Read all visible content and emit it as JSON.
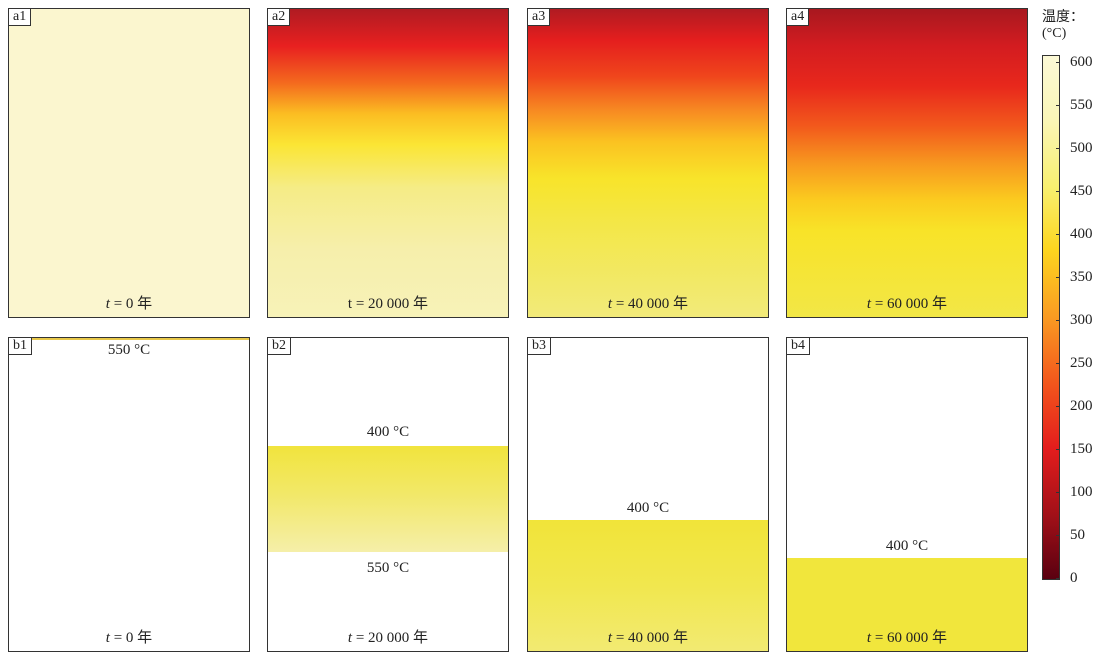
{
  "top_row": [
    {
      "id": "a1",
      "time": "= 0 年",
      "t_italic": "t"
    },
    {
      "id": "a2",
      "time": "t = 20 000 年",
      "t_italic": ""
    },
    {
      "id": "a3",
      "time": "= 40 000 年",
      "t_italic": "t"
    },
    {
      "id": "a4",
      "time": "= 60 000 年",
      "t_italic": "t"
    }
  ],
  "bottom_row": [
    {
      "id": "b1",
      "time": "= 0 年",
      "t_italic": "t",
      "isotherm_top": "550 °C"
    },
    {
      "id": "b2",
      "time": "= 20 000 年",
      "t_italic": "t",
      "isotherm_top": "400 °C",
      "isotherm_bottom": "550 °C"
    },
    {
      "id": "b3",
      "time": "= 40 000 年",
      "t_italic": "t",
      "isotherm_top": "400 °C"
    },
    {
      "id": "b4",
      "time": "= 60 000 年",
      "t_italic": "t",
      "isotherm_top": "400 °C"
    }
  ],
  "legend": {
    "title_line1": "温度：",
    "title_line2": "(°C)",
    "ticks": [
      "600",
      "550",
      "500",
      "450",
      "400",
      "350",
      "300",
      "250",
      "200",
      "150",
      "100",
      "50",
      "0"
    ]
  }
}
